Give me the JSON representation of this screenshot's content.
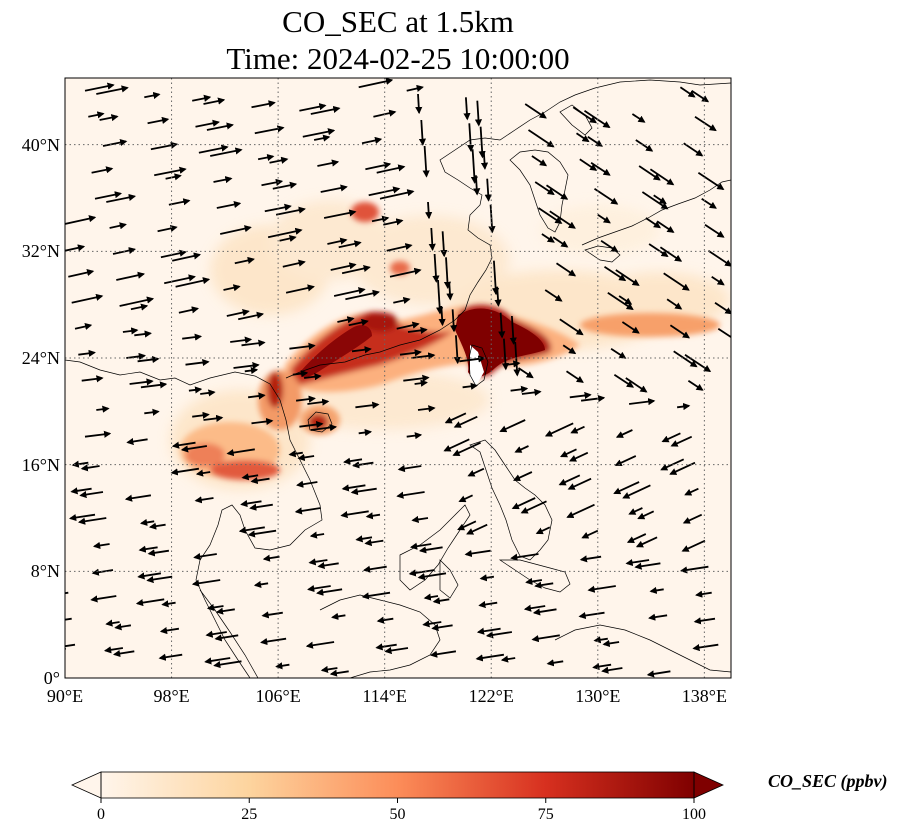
{
  "title_line1": "CO_SEC at 1.5km",
  "title_line2": "Time: 2024-02-25 10:00:00",
  "map": {
    "lon_range": [
      90,
      140
    ],
    "lat_range": [
      0,
      45
    ],
    "lon_ticks": [
      {
        "value": 90,
        "label": "90°E"
      },
      {
        "value": 98,
        "label": "98°E"
      },
      {
        "value": 106,
        "label": "106°E"
      },
      {
        "value": 114,
        "label": "114°E"
      },
      {
        "value": 122,
        "label": "122°E"
      },
      {
        "value": 130,
        "label": "130°E"
      },
      {
        "value": 138,
        "label": "138°E"
      }
    ],
    "lat_ticks": [
      {
        "value": 0,
        "label": "0°"
      },
      {
        "value": 8,
        "label": "8°N"
      },
      {
        "value": 16,
        "label": "16°N"
      },
      {
        "value": 24,
        "label": "24°N"
      },
      {
        "value": 32,
        "label": "32°N"
      },
      {
        "value": 40,
        "label": "40°N"
      }
    ],
    "gridlines": "dotted",
    "background_color": "#fff5eb",
    "coastline_color": "#000000",
    "vector_color": "#000000"
  },
  "colorbar": {
    "label": "CO_SEC (ppbv)",
    "min": 0,
    "max": 100,
    "extend": "both",
    "colormap": "OrRd",
    "colors": [
      "#fff5eb",
      "#fdd49e",
      "#fc8d59",
      "#d7301f",
      "#7f0000"
    ],
    "ticks": [
      {
        "value": 0,
        "label": "0"
      },
      {
        "value": 25,
        "label": "25"
      },
      {
        "value": 50,
        "label": "50"
      },
      {
        "value": 75,
        "label": "75"
      },
      {
        "value": 100,
        "label": "100"
      }
    ]
  }
}
